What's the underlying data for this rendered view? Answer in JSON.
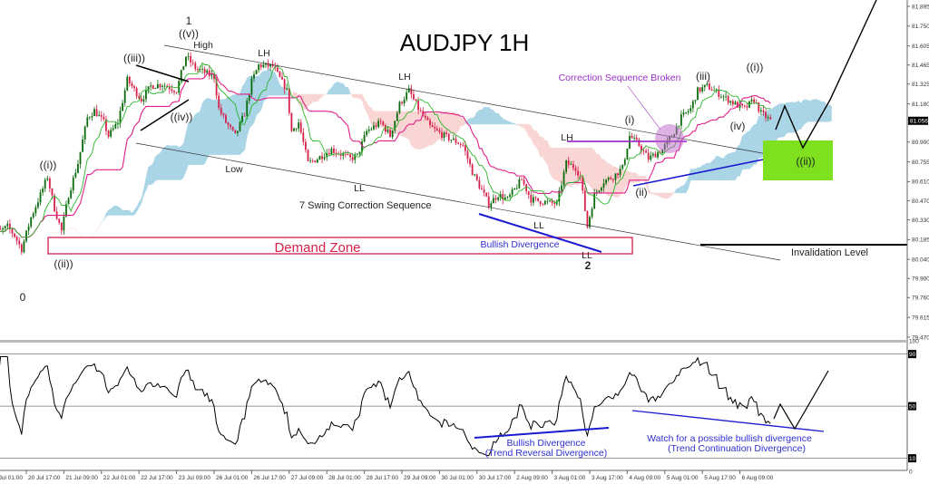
{
  "title": "AUDJPY 1H",
  "colors": {
    "bull_candle": "#0b6b0b",
    "bear_candle": "#d6204a",
    "tenkan": "#2bb52b",
    "kijun": "#e0208a",
    "cloud_bullish": "#a9d5e6",
    "cloud_bearish": "#f9d5d3",
    "demand_zone": "#d6204a",
    "divergence": "#1a1ad0",
    "correction_broken": "#9b30c8",
    "target_zone": "#7ee01e"
  },
  "chart_data": {
    "type": "candlestick",
    "symbol": "AUDJPY",
    "timeframe": "1H",
    "price_axis": {
      "ticks": [
        "81.895",
        "81.750",
        "81.605",
        "81.465",
        "81.325",
        "81.180",
        "80.900",
        "80.755",
        "80.610",
        "80.470",
        "80.330",
        "80.185",
        "80.040",
        "79.900",
        "79.760",
        "79.615",
        "79.470"
      ],
      "current_price": "81.056",
      "range": [
        79.47,
        81.895
      ]
    },
    "time_axis": {
      "ticks": [
        "20 Jul 01:00",
        "20 Jul 17:00",
        "21 Jul 09:00",
        "22 Jul 01:00",
        "22 Jul 17:00",
        "23 Jul 09:00",
        "26 Jul 01:00",
        "26 Jul 17:00",
        "27 Jul 09:00",
        "28 Jul 01:00",
        "28 Jul 17:00",
        "29 Jul 09:00",
        "30 Jul 01:00",
        "30 Jul 17:00",
        "2 Aug 09:00",
        "3 Aug 01:00",
        "3 Aug 17:00",
        "4 Aug 09:00",
        "5 Aug 01:00",
        "5 Aug 17:00",
        "6 Aug 09:00"
      ]
    },
    "close_path": [
      [
        "20 Jul 06:00",
        80.247
      ],
      [
        "20 Jul 09:00",
        80.28
      ],
      [
        "20 Jul 12:00",
        80.214
      ],
      [
        "20 Jul 15:00",
        80.114
      ],
      [
        "20 Jul 19:00",
        80.347
      ],
      [
        "20 Jul 23:00",
        80.513
      ],
      [
        "21 Jul 02:00",
        80.646
      ],
      [
        "21 Jul 05:00",
        80.413
      ],
      [
        "21 Jul 08:00",
        80.247
      ],
      [
        "21 Jul 11:00",
        80.513
      ],
      [
        "21 Jul 15:00",
        80.745
      ],
      [
        "21 Jul 19:00",
        81.078
      ],
      [
        "21 Jul 22:00",
        81.131
      ],
      [
        "22 Jul 02:00",
        81.045
      ],
      [
        "22 Jul 04:00",
        80.945
      ],
      [
        "22 Jul 08:00",
        81.045
      ],
      [
        "22 Jul 12:00",
        81.357
      ],
      [
        "22 Jul 18:00",
        81.211
      ],
      [
        "22 Jul 22:00",
        81.31
      ],
      [
        "23 Jul 03:00",
        81.324
      ],
      [
        "23 Jul 09:00",
        81.277
      ],
      [
        "23 Jul 13:00",
        81.53
      ],
      [
        "23 Jul 17:00",
        81.443
      ],
      [
        "23 Jul 21:00",
        81.41
      ],
      [
        "26 Jul 01:00",
        81.377
      ],
      [
        "26 Jul 03:00",
        81.144
      ],
      [
        "26 Jul 06:00",
        81.045
      ],
      [
        "26 Jul 10:00",
        80.945
      ],
      [
        "26 Jul 14:00",
        81.111
      ],
      [
        "26 Jul 17:00",
        81.344
      ],
      [
        "26 Jul 20:00",
        81.463
      ],
      [
        "27 Jul 02:00",
        81.456
      ],
      [
        "27 Jul 08:00",
        81.277
      ],
      [
        "27 Jul 10:00",
        80.978
      ],
      [
        "27 Jul 13:00",
        81.045
      ],
      [
        "27 Jul 17:00",
        80.745
      ],
      [
        "27 Jul 21:00",
        80.779
      ],
      [
        "28 Jul 03:00",
        80.845
      ],
      [
        "28 Jul 11:00",
        80.779
      ],
      [
        "28 Jul 14:00",
        80.799
      ],
      [
        "28 Jul 18:00",
        80.978
      ],
      [
        "29 Jul 00:00",
        81.045
      ],
      [
        "29 Jul 04:00",
        80.945
      ],
      [
        "29 Jul 08:00",
        81.177
      ],
      [
        "29 Jul 12:00",
        81.277
      ],
      [
        "29 Jul 16:00",
        81.144
      ],
      [
        "29 Jul 21:00",
        81.011
      ],
      [
        "30 Jul 03:00",
        80.945
      ],
      [
        "30 Jul 11:00",
        80.878
      ],
      [
        "30 Jul 15:00",
        80.679
      ],
      [
        "30 Jul 19:00",
        80.546
      ],
      [
        "30 Jul 22:00",
        80.446
      ],
      [
        "2 Aug 02:00",
        80.513
      ],
      [
        "2 Aug 06:00",
        80.48
      ],
      [
        "2 Aug 12:00",
        80.626
      ],
      [
        "2 Aug 16:00",
        80.48
      ],
      [
        "2 Aug 20:00",
        80.466
      ],
      [
        "3 Aug 03:00",
        80.446
      ],
      [
        "3 Aug 07:00",
        80.745
      ],
      [
        "3 Aug 11:00",
        80.712
      ],
      [
        "3 Aug 13:00",
        80.646
      ],
      [
        "3 Aug 16:00",
        80.28
      ],
      [
        "3 Aug 19:00",
        80.513
      ],
      [
        "3 Aug 23:00",
        80.613
      ],
      [
        "4 Aug 03:00",
        80.646
      ],
      [
        "4 Aug 07:00",
        80.712
      ],
      [
        "4 Aug 10:00",
        80.945
      ],
      [
        "4 Aug 14:00",
        80.878
      ],
      [
        "4 Aug 18:00",
        80.779
      ],
      [
        "5 Aug 00:00",
        80.845
      ],
      [
        "5 Aug 04:00",
        80.945
      ],
      [
        "5 Aug 08:00",
        81.078
      ],
      [
        "5 Aug 12:00",
        81.144
      ],
      [
        "5 Aug 15:00",
        81.277
      ],
      [
        "5 Aug 19:00",
        81.31
      ],
      [
        "6 Aug 01:00",
        81.244
      ],
      [
        "6 Aug 07:00",
        81.177
      ],
      [
        "6 Aug 11:00",
        81.144
      ],
      [
        "6 Aug 15:00",
        81.211
      ],
      [
        "6 Aug 18:00",
        81.111
      ],
      [
        "6 Aug 22:00",
        81.058
      ]
    ],
    "indicators": {
      "ichimoku": {
        "cloud": true,
        "tenkan_line": true,
        "kijun_line": true
      },
      "rsi": {
        "levels": [
          90,
          50,
          10
        ],
        "axis_labels": [
          "100",
          "90",
          "50",
          "10",
          "0"
        ],
        "range": [
          0,
          100
        ]
      }
    },
    "grid": false
  },
  "annotations": {
    "wave_1": "1",
    "wave_v": "((v))",
    "high": "High",
    "wave_iii": "((iii))",
    "wave_iv": "((iv))",
    "wave_i": "((i))",
    "wave_ii": "((ii))",
    "wave_0": "0",
    "lh_1": "LH",
    "low": "Low",
    "lh_2": "LH",
    "ll_1": "LL",
    "swing_sequence": "7 Swing Correction Sequence",
    "demand_zone": "Demand Zone",
    "bullish_divergence": "Bullish Divergence",
    "ll_2": "LL",
    "ll_3": "LL",
    "wave_2": "2",
    "lh_3": "LH",
    "correction_broken": "Correction Sequence Broken",
    "sub_i": "(i)",
    "sub_ii": "(ii)",
    "sub_iii": "(iii)",
    "sub_iv": "(iv)",
    "next_i": "((i))",
    "next_ii": "((ii))",
    "invalidation": "Invalidation Level",
    "rsi_div_1": "Bullish Divergence",
    "rsi_div_1_sub": "(Trend Reversal Divergence)",
    "rsi_div_2": "Watch for a possible bullish divergence",
    "rsi_div_2_sub": "(Trend Continuation Divergence)"
  }
}
